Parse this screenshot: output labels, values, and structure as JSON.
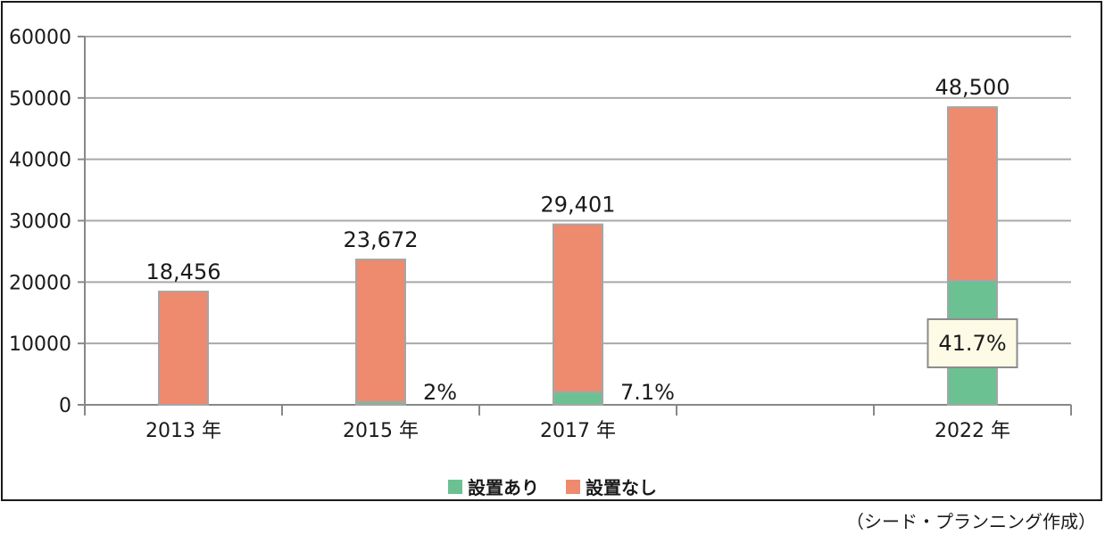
{
  "chart_data": {
    "type": "bar",
    "stacked": true,
    "categories": [
      "2013 年",
      "2015 年",
      "2017 年",
      "",
      "2022 年"
    ],
    "series": [
      {
        "name": "設置あり",
        "color": "#6cc192",
        "values": [
          0,
          473,
          2087,
          null,
          20225
        ]
      },
      {
        "name": "設置なし",
        "color": "#ee8a6e",
        "values": [
          18456,
          23199,
          27314,
          null,
          28275
        ]
      }
    ],
    "totals": [
      18456,
      23672,
      29401,
      null,
      48500
    ],
    "total_labels": [
      "18,456",
      "23,672",
      "29,401",
      "",
      "48,500"
    ],
    "share_labels": [
      "",
      "2%",
      "7.1%",
      "",
      "41.7%"
    ],
    "ylim": [
      0,
      60000
    ],
    "yticks": [
      0,
      10000,
      20000,
      30000,
      40000,
      50000,
      60000
    ],
    "grid": true,
    "legend_position": "bottom",
    "title": "",
    "xlabel": "",
    "ylabel": ""
  },
  "legend": {
    "with_label": "設置あり",
    "without_label": "設置なし",
    "with_color": "#6cc192",
    "without_color": "#ee8a6e"
  },
  "source_note": "（シード・プランニング作成）"
}
